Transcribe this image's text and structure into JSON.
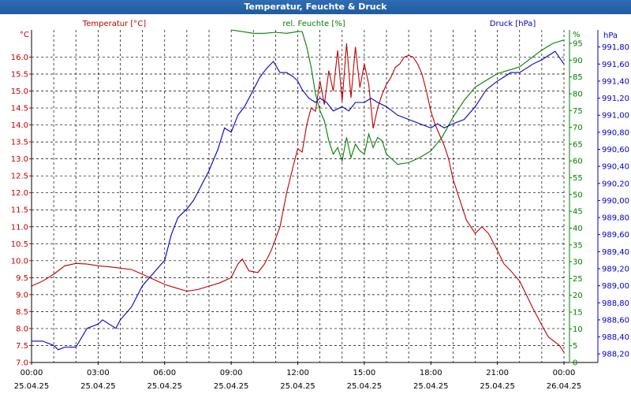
{
  "window": {
    "title": "Temperatur, Feuchte & Druck"
  },
  "colors": {
    "temperature": "#c00000",
    "humidity": "#008000",
    "pressure": "#0000c0",
    "grid": "#000000"
  },
  "chart_data": {
    "type": "line",
    "title": "Temperatur, Feuchte & Druck",
    "grid": true,
    "x_range": [
      "25.04.25 00:00",
      "26.04.25 00:00"
    ],
    "x_ticks": [
      {
        "time": "00:00",
        "date": "25.04.25"
      },
      {
        "time": "03:00",
        "date": "25.04.25"
      },
      {
        "time": "06:00",
        "date": "25.04.25"
      },
      {
        "time": "09:00",
        "date": "25.04.25"
      },
      {
        "time": "12:00",
        "date": "25.04.25"
      },
      {
        "time": "15:00",
        "date": "25.04.25"
      },
      {
        "time": "18:00",
        "date": "25.04.25"
      },
      {
        "time": "21:00",
        "date": "25.04.25"
      },
      {
        "time": "00:00",
        "date": "26.04.25"
      }
    ],
    "axes": {
      "temperature": {
        "label": "Temperatur [°C]",
        "unit": "°C",
        "side": "left",
        "ylim": [
          7.0,
          16.8
        ],
        "ticks": [
          "7.0",
          "7.5",
          "8.0",
          "8.5",
          "9.0",
          "9.5",
          "10.0",
          "10.5",
          "11.0",
          "11.5",
          "12.0",
          "12.5",
          "13.0",
          "13.5",
          "14.0",
          "14.5",
          "15.0",
          "15.5",
          "16.0"
        ]
      },
      "humidity": {
        "label": "rel. Feuchte [%]",
        "unit": "%",
        "side": "right",
        "ylim": [
          0,
          99
        ],
        "ticks": [
          "0",
          "5",
          "10",
          "15",
          "20",
          "25",
          "30",
          "35",
          "40",
          "45",
          "50",
          "55",
          "60",
          "65",
          "70",
          "75",
          "80",
          "85",
          "90",
          "95"
        ]
      },
      "pressure": {
        "label": "Druck [hPa]",
        "unit": "hPa",
        "side": "right",
        "ylim": [
          988.1,
          992.0
        ],
        "ticks": [
          "988,20",
          "988,40",
          "988,60",
          "988,80",
          "989,00",
          "989,20",
          "989,40",
          "989,60",
          "989,80",
          "990,00",
          "990,20",
          "990,40",
          "990,60",
          "990,80",
          "991,00",
          "991,20",
          "991,40",
          "991,60",
          "991,80"
        ]
      }
    },
    "series": [
      {
        "name": "Temperatur [°C]",
        "axis": "temperature",
        "color": "#c00000",
        "points": [
          [
            0.0,
            9.25
          ],
          [
            0.5,
            9.4
          ],
          [
            1.0,
            9.6
          ],
          [
            1.5,
            9.85
          ],
          [
            2.0,
            9.92
          ],
          [
            2.5,
            9.9
          ],
          [
            3.0,
            9.85
          ],
          [
            3.5,
            9.82
          ],
          [
            4.0,
            9.78
          ],
          [
            4.5,
            9.74
          ],
          [
            5.0,
            9.6
          ],
          [
            5.5,
            9.45
          ],
          [
            6.0,
            9.3
          ],
          [
            6.5,
            9.2
          ],
          [
            7.0,
            9.1
          ],
          [
            7.5,
            9.15
          ],
          [
            8.0,
            9.25
          ],
          [
            8.5,
            9.35
          ],
          [
            9.0,
            9.5
          ],
          [
            9.3,
            9.9
          ],
          [
            9.5,
            10.05
          ],
          [
            9.8,
            9.7
          ],
          [
            10.2,
            9.65
          ],
          [
            10.5,
            9.9
          ],
          [
            10.8,
            10.3
          ],
          [
            11.2,
            11.0
          ],
          [
            11.5,
            12.0
          ],
          [
            11.8,
            12.8
          ],
          [
            12.0,
            13.3
          ],
          [
            12.2,
            13.2
          ],
          [
            12.4,
            14.0
          ],
          [
            12.6,
            14.5
          ],
          [
            12.8,
            14.4
          ],
          [
            13.0,
            15.3
          ],
          [
            13.2,
            14.6
          ],
          [
            13.4,
            15.6
          ],
          [
            13.6,
            15.0
          ],
          [
            13.8,
            16.2
          ],
          [
            14.0,
            14.7
          ],
          [
            14.2,
            16.4
          ],
          [
            14.4,
            14.8
          ],
          [
            14.6,
            16.3
          ],
          [
            14.8,
            15.1
          ],
          [
            15.0,
            15.8
          ],
          [
            15.2,
            15.2
          ],
          [
            15.4,
            13.9
          ],
          [
            15.6,
            14.5
          ],
          [
            15.8,
            14.9
          ],
          [
            16.0,
            15.2
          ],
          [
            16.2,
            15.4
          ],
          [
            16.4,
            15.7
          ],
          [
            16.6,
            15.8
          ],
          [
            16.8,
            16.0
          ],
          [
            17.0,
            16.05
          ],
          [
            17.2,
            16.0
          ],
          [
            17.4,
            15.8
          ],
          [
            17.6,
            15.5
          ],
          [
            17.8,
            15.0
          ],
          [
            18.0,
            14.4
          ],
          [
            18.2,
            14.0
          ],
          [
            18.4,
            13.7
          ],
          [
            18.6,
            13.4
          ],
          [
            18.8,
            13.0
          ],
          [
            19.0,
            12.4
          ],
          [
            19.3,
            11.8
          ],
          [
            19.6,
            11.2
          ],
          [
            20.0,
            10.8
          ],
          [
            20.3,
            11.0
          ],
          [
            20.6,
            10.8
          ],
          [
            21.0,
            10.3
          ],
          [
            21.3,
            9.9
          ],
          [
            21.6,
            9.7
          ],
          [
            22.0,
            9.4
          ],
          [
            22.3,
            9.0
          ],
          [
            22.6,
            8.6
          ],
          [
            23.0,
            8.1
          ],
          [
            23.3,
            7.75
          ],
          [
            23.6,
            7.6
          ],
          [
            23.8,
            7.5
          ],
          [
            24.0,
            7.3
          ]
        ]
      },
      {
        "name": "rel. Feuchte [%]",
        "axis": "humidity",
        "color": "#008000",
        "points": [
          [
            9.0,
            99
          ],
          [
            9.5,
            98.5
          ],
          [
            10.0,
            98
          ],
          [
            10.5,
            98
          ],
          [
            11.0,
            98.3
          ],
          [
            11.5,
            98
          ],
          [
            12.0,
            98.5
          ],
          [
            12.2,
            98.5
          ],
          [
            12.4,
            94
          ],
          [
            12.6,
            88
          ],
          [
            12.8,
            80
          ],
          [
            13.0,
            75
          ],
          [
            13.2,
            72
          ],
          [
            13.4,
            66
          ],
          [
            13.6,
            62
          ],
          [
            13.8,
            64
          ],
          [
            14.0,
            60
          ],
          [
            14.2,
            67
          ],
          [
            14.4,
            61
          ],
          [
            14.6,
            65
          ],
          [
            14.8,
            63
          ],
          [
            15.0,
            62
          ],
          [
            15.2,
            68
          ],
          [
            15.4,
            64
          ],
          [
            15.6,
            67
          ],
          [
            15.8,
            66
          ],
          [
            16.0,
            62
          ],
          [
            16.5,
            59
          ],
          [
            17.0,
            59.5
          ],
          [
            17.5,
            61
          ],
          [
            18.0,
            63
          ],
          [
            18.5,
            67
          ],
          [
            19.0,
            73
          ],
          [
            19.5,
            78
          ],
          [
            20.0,
            82
          ],
          [
            20.5,
            84
          ],
          [
            21.0,
            86
          ],
          [
            21.5,
            87
          ],
          [
            22.0,
            88
          ],
          [
            22.5,
            90.5
          ],
          [
            23.0,
            93
          ],
          [
            23.5,
            95
          ],
          [
            24.0,
            96
          ]
        ]
      },
      {
        "name": "Druck [hPa]",
        "axis": "pressure",
        "color": "#0000c0",
        "points": [
          [
            0.0,
            988.35
          ],
          [
            0.5,
            988.35
          ],
          [
            1.0,
            988.3
          ],
          [
            1.2,
            988.25
          ],
          [
            1.5,
            988.28
          ],
          [
            2.0,
            988.28
          ],
          [
            2.5,
            988.5
          ],
          [
            3.0,
            988.55
          ],
          [
            3.2,
            988.6
          ],
          [
            3.5,
            988.55
          ],
          [
            3.8,
            988.5
          ],
          [
            4.0,
            988.6
          ],
          [
            4.5,
            988.75
          ],
          [
            5.0,
            989.0
          ],
          [
            5.5,
            989.15
          ],
          [
            6.0,
            989.3
          ],
          [
            6.3,
            989.6
          ],
          [
            6.6,
            989.8
          ],
          [
            7.0,
            989.9
          ],
          [
            7.3,
            990.0
          ],
          [
            7.6,
            990.15
          ],
          [
            8.0,
            990.35
          ],
          [
            8.4,
            990.6
          ],
          [
            8.7,
            990.85
          ],
          [
            9.0,
            990.8
          ],
          [
            9.3,
            991.0
          ],
          [
            9.6,
            991.1
          ],
          [
            10.0,
            991.3
          ],
          [
            10.3,
            991.45
          ],
          [
            10.6,
            991.55
          ],
          [
            10.9,
            991.63
          ],
          [
            11.2,
            991.5
          ],
          [
            11.5,
            991.5
          ],
          [
            11.8,
            991.45
          ],
          [
            12.0,
            991.4
          ],
          [
            12.2,
            991.3
          ],
          [
            12.5,
            991.2
          ],
          [
            12.8,
            991.15
          ],
          [
            13.0,
            991.2
          ],
          [
            13.3,
            991.15
          ],
          [
            13.6,
            991.05
          ],
          [
            14.0,
            991.1
          ],
          [
            14.3,
            991.05
          ],
          [
            14.6,
            991.15
          ],
          [
            15.0,
            991.15
          ],
          [
            15.3,
            991.2
          ],
          [
            15.6,
            991.15
          ],
          [
            16.0,
            991.1
          ],
          [
            16.5,
            991.0
          ],
          [
            17.0,
            990.95
          ],
          [
            17.5,
            990.9
          ],
          [
            18.0,
            990.85
          ],
          [
            18.3,
            990.9
          ],
          [
            18.6,
            990.85
          ],
          [
            19.0,
            990.9
          ],
          [
            19.5,
            990.95
          ],
          [
            20.0,
            991.1
          ],
          [
            20.5,
            991.3
          ],
          [
            21.0,
            991.4
          ],
          [
            21.3,
            991.45
          ],
          [
            21.6,
            991.5
          ],
          [
            22.0,
            991.5
          ],
          [
            22.3,
            991.55
          ],
          [
            22.6,
            991.6
          ],
          [
            23.0,
            991.65
          ],
          [
            23.3,
            991.7
          ],
          [
            23.6,
            991.75
          ],
          [
            24.0,
            991.6
          ]
        ]
      }
    ]
  }
}
